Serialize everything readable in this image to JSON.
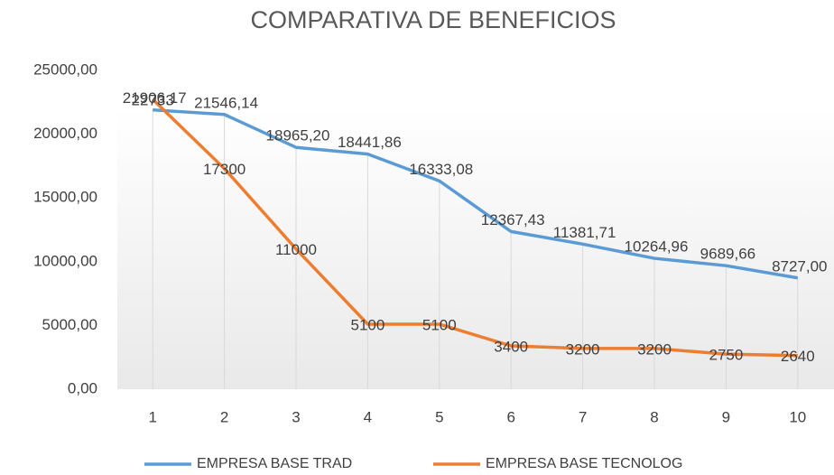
{
  "chart_data": {
    "type": "line",
    "title": "COMPARATIVA DE BENEFICIOS",
    "categories": [
      "1",
      "2",
      "3",
      "4",
      "5",
      "6",
      "7",
      "8",
      "9",
      "10"
    ],
    "series": [
      {
        "name": "EMPRESA BASE TRAD",
        "color": "#5b9bd5",
        "values": [
          21906.17,
          21546.14,
          18965.2,
          18441.86,
          16333.08,
          12367.43,
          11381.71,
          10264.96,
          9689.66,
          8727.0
        ],
        "value_labels": [
          "21906,17",
          "21546,14",
          "18965,20",
          "18441,86",
          "16333,08",
          "12367,43",
          "11381,71",
          "10264,96",
          "9689,66",
          "8727,00"
        ]
      },
      {
        "name": "EMPRESA BASE TECNOLOG",
        "color": "#ed7d31",
        "values": [
          22733,
          17300,
          11000,
          5100,
          5100,
          3400,
          3200,
          3200,
          2750,
          2640
        ]
      }
    ],
    "ylim": [
      0,
      25000
    ],
    "yticks": [
      {
        "value": 0,
        "label": "0,00"
      },
      {
        "value": 5000,
        "label": "5000,00"
      },
      {
        "value": 10000,
        "label": "10000,00"
      },
      {
        "value": 15000,
        "label": "15000,00"
      },
      {
        "value": 20000,
        "label": "20000,00"
      },
      {
        "value": 25000,
        "label": "25000,00"
      }
    ],
    "legend": "bottom"
  }
}
